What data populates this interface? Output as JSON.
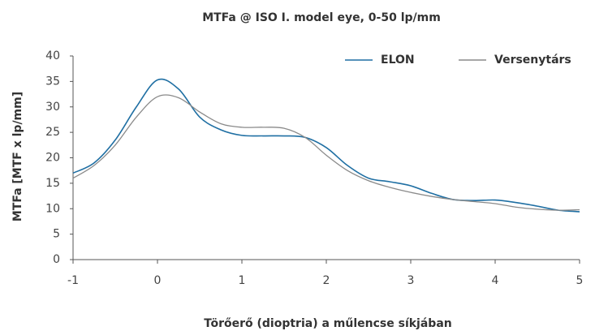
{
  "chart_data": {
    "type": "line",
    "title": "MTFa @ ISO I. model eye, 0-50 lp/mm",
    "xlabel": "Törőerő (dioptria) a műlencse síkjában",
    "ylabel": "MTFa [MTF x lp/mm]",
    "x": [
      -1,
      -0.75,
      -0.5,
      -0.25,
      0,
      0.25,
      0.5,
      0.75,
      1,
      1.25,
      1.5,
      1.75,
      2,
      2.25,
      2.5,
      2.75,
      3,
      3.25,
      3.5,
      3.75,
      4,
      4.25,
      4.5,
      4.75,
      5
    ],
    "series": [
      {
        "name": "ELON",
        "color": "#1f6fa3",
        "values": [
          17,
          19,
          23.5,
          30,
          35.3,
          33.5,
          28,
          25.5,
          24.4,
          24.3,
          24.3,
          24,
          22,
          18.5,
          16,
          15.3,
          14.5,
          13,
          11.8,
          11.6,
          11.7,
          11.2,
          10.5,
          9.7,
          9.4
        ]
      },
      {
        "name": "Versenytárs",
        "color": "#8a8a8a",
        "values": [
          16,
          18.5,
          22.5,
          28,
          32,
          31.8,
          29,
          26.7,
          26,
          26,
          25.8,
          24,
          20.5,
          17.5,
          15.5,
          14.2,
          13.2,
          12.4,
          11.8,
          11.4,
          11,
          10.3,
          9.9,
          9.7,
          9.8
        ]
      }
    ],
    "xlim": [
      -1,
      5
    ],
    "xticks": [
      -1,
      0,
      1,
      2,
      3,
      4,
      5
    ],
    "ylim": [
      0,
      40
    ],
    "yticks": [
      0,
      5,
      10,
      15,
      20,
      25,
      30,
      35,
      40
    ],
    "grid": false,
    "legend": "top-right"
  }
}
